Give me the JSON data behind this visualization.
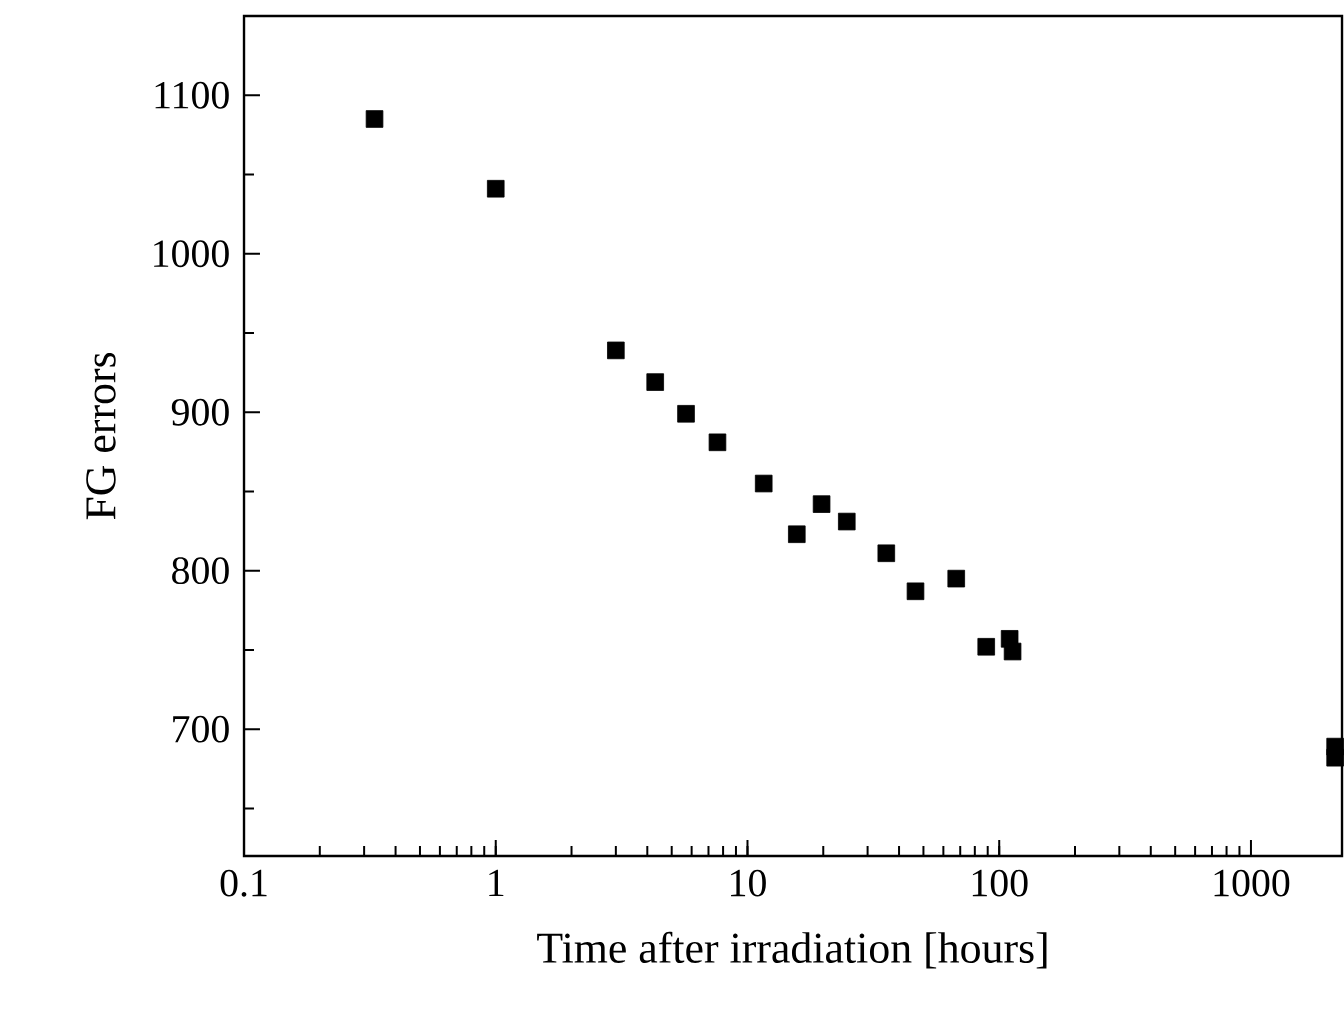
{
  "chart_data": {
    "type": "scatter",
    "xlabel": "Time after irradiation [hours]",
    "ylabel": "FG errors",
    "log": "x",
    "marker": "square",
    "grid": false,
    "series": [
      {
        "color": "#000000",
        "x": [
          0.33,
          1.0,
          3.0,
          4.3,
          5.7,
          7.6,
          11.6,
          15.7,
          19.7,
          24.8,
          35.6,
          46.5,
          67.5,
          88.8,
          110,
          113,
          2160,
          2160
        ],
        "values": [
          1085,
          1041,
          939,
          919,
          899,
          881,
          855,
          823,
          842,
          831,
          811,
          787,
          795,
          752,
          757,
          749,
          689,
          682
        ]
      }
    ],
    "xlim": [
      0.1,
      2300
    ],
    "ylim": [
      620,
      1150
    ],
    "xticks": [
      0.1,
      1,
      10,
      100,
      1000
    ],
    "yticks": [
      700,
      800,
      900,
      1000,
      1100
    ]
  }
}
